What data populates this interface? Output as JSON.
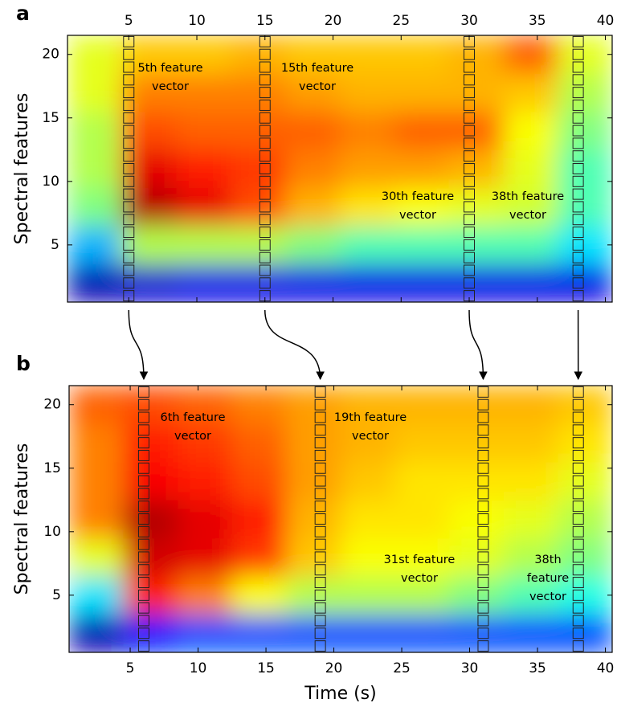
{
  "chart_data": [
    {
      "type": "heatmap",
      "panel": "a",
      "ylabel": "Spectral features",
      "xaxis_position": "top",
      "xlim": [
        0.5,
        40.5
      ],
      "ylim": [
        0.5,
        21.5
      ],
      "xticks": [
        5,
        10,
        15,
        20,
        25,
        30,
        35,
        40
      ],
      "yticks": [
        5,
        10,
        15,
        20
      ],
      "xbins": [
        0.5,
        4.5,
        8.5,
        12.5,
        16.5,
        20.5,
        24.5,
        28.5,
        32.5,
        36.5,
        40.5
      ],
      "ybins": [
        0.5,
        3.5,
        6.5,
        9.5,
        12.5,
        15.5,
        18.5,
        21.5
      ],
      "z": [
        [
          0.05,
          0.08,
          0.1,
          0.1,
          0.1,
          0.1,
          0.1,
          0.1,
          0.1,
          0.1
        ],
        [
          0.3,
          0.55,
          0.55,
          0.55,
          0.5,
          0.45,
          0.45,
          0.45,
          0.45,
          0.35
        ],
        [
          0.5,
          0.95,
          0.9,
          0.8,
          0.7,
          0.65,
          0.62,
          0.6,
          0.58,
          0.45
        ],
        [
          0.55,
          0.9,
          0.85,
          0.82,
          0.75,
          0.72,
          0.72,
          0.7,
          0.6,
          0.45
        ],
        [
          0.55,
          0.8,
          0.78,
          0.78,
          0.78,
          0.75,
          0.78,
          0.78,
          0.62,
          0.5
        ],
        [
          0.6,
          0.75,
          0.75,
          0.75,
          0.72,
          0.7,
          0.7,
          0.7,
          0.68,
          0.55
        ],
        [
          0.6,
          0.68,
          0.68,
          0.7,
          0.68,
          0.68,
          0.68,
          0.7,
          0.78,
          0.6
        ]
      ],
      "highlight_x": [
        5,
        15,
        30,
        38
      ],
      "annotations": [
        [
          "5th feature",
          "vector"
        ],
        [
          "15th feature",
          "vector"
        ],
        [
          "30th feature",
          "vector"
        ],
        [
          "38th feature",
          "vector"
        ]
      ]
    },
    {
      "type": "heatmap",
      "panel": "b",
      "ylabel": "Spectral features",
      "xlabel": "Time (s)",
      "xaxis_position": "bottom",
      "xlim": [
        0.5,
        40.5
      ],
      "ylim": [
        0.5,
        21.5
      ],
      "xticks": [
        5,
        10,
        15,
        20,
        25,
        30,
        35,
        40
      ],
      "yticks": [
        5,
        10,
        15,
        20
      ],
      "xbins": [
        0.5,
        4.5,
        8.5,
        12.5,
        16.5,
        20.5,
        24.5,
        28.5,
        32.5,
        36.5,
        40.5
      ],
      "ybins": [
        0.5,
        3.5,
        6.5,
        9.5,
        12.5,
        15.5,
        18.5,
        21.5
      ],
      "z": [
        [
          0.05,
          0.15,
          0.2,
          0.2,
          0.2,
          0.2,
          0.2,
          0.2,
          0.2,
          0.2
        ],
        [
          0.35,
          0.85,
          0.75,
          0.62,
          0.55,
          0.55,
          0.55,
          0.5,
          0.45,
          0.4
        ],
        [
          0.6,
          0.92,
          0.9,
          0.82,
          0.68,
          0.62,
          0.62,
          0.6,
          0.55,
          0.5
        ],
        [
          0.75,
          0.95,
          0.9,
          0.85,
          0.7,
          0.65,
          0.65,
          0.62,
          0.6,
          0.55
        ],
        [
          0.75,
          0.88,
          0.85,
          0.8,
          0.72,
          0.68,
          0.65,
          0.65,
          0.65,
          0.6
        ],
        [
          0.75,
          0.85,
          0.82,
          0.78,
          0.72,
          0.7,
          0.68,
          0.68,
          0.68,
          0.65
        ],
        [
          0.78,
          0.8,
          0.78,
          0.75,
          0.72,
          0.7,
          0.7,
          0.7,
          0.7,
          0.68
        ]
      ],
      "highlight_x": [
        6,
        19,
        31,
        38
      ],
      "annotations": [
        [
          "6th feature",
          "vector"
        ],
        [
          "19th feature",
          "vector"
        ],
        [
          "31st feature",
          "vector"
        ],
        [
          "38th",
          "feature",
          "vector"
        ]
      ]
    }
  ]
}
